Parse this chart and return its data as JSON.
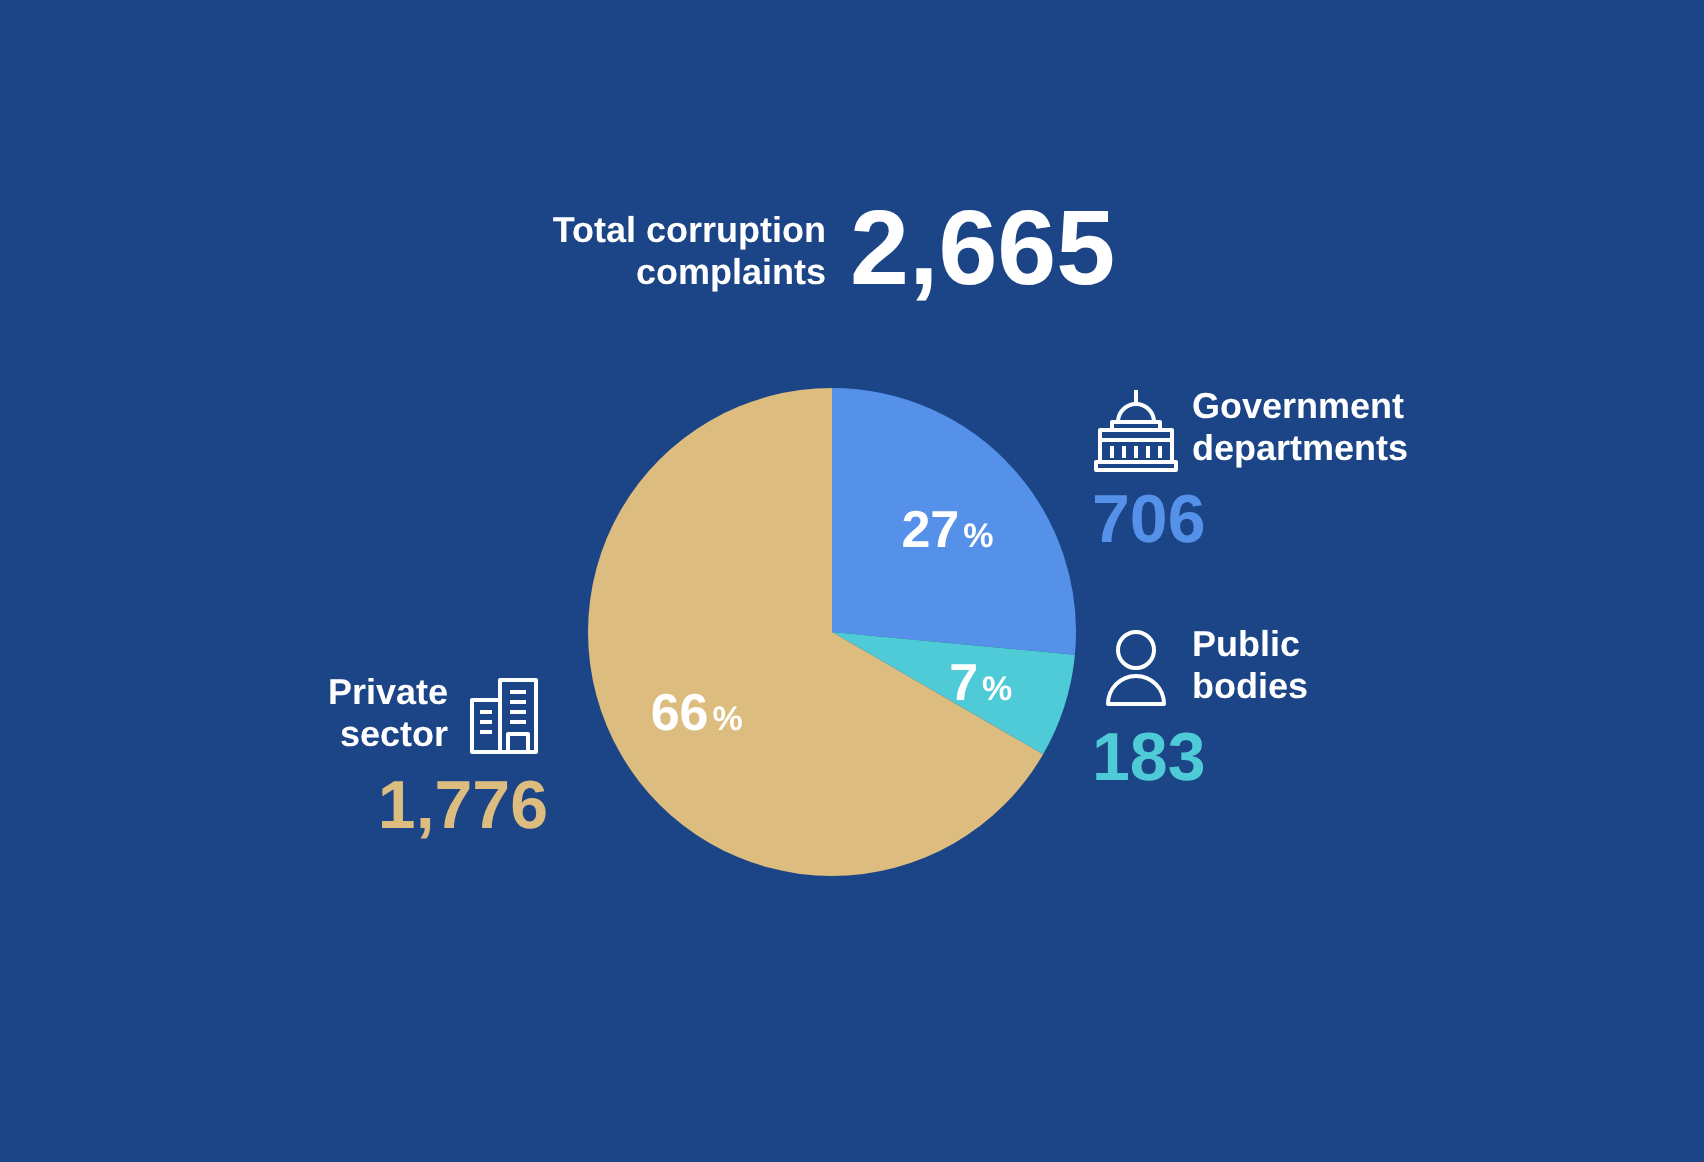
{
  "chart_data": {
    "type": "pie",
    "title": "Total corruption complaints",
    "subtitle": "2,665",
    "categories": [
      "Government departments",
      "Public bodies",
      "Private sector"
    ],
    "values": [
      706,
      183,
      1776
    ],
    "colors": [
      "#5591e8",
      "#4ecbd6",
      "#dcbc7f"
    ],
    "value_labels": [
      "706",
      "183",
      "1,776"
    ],
    "annotations": [
      {
        "text": "27%",
        "x": "Government departments"
      },
      {
        "text": "7%",
        "x": "Public bodies"
      },
      {
        "text": "66%",
        "x": "Private sector"
      }
    ]
  }
}
